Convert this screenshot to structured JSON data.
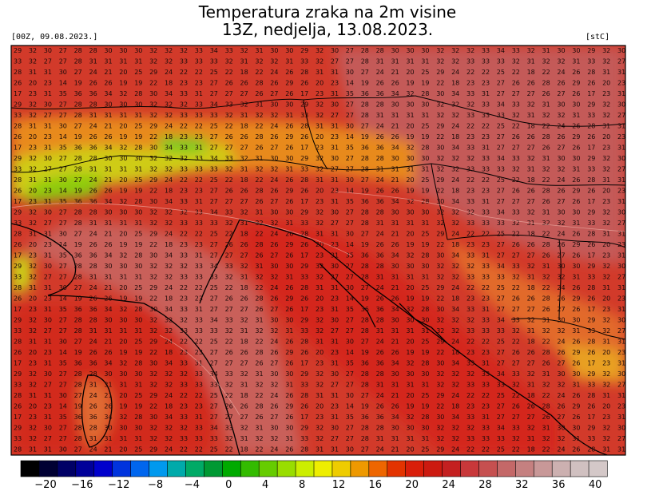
{
  "title_line1": "Temperatura zraka na 2m visine",
  "title_line2": "13Z, nedjelja, 13.08.2023.",
  "run_label": "[00Z, 09.08.2023.]",
  "unit_label": "[stC]",
  "legend": {
    "ticks": [
      "−20",
      "−16",
      "−12",
      "−8",
      "−4",
      "0",
      "4",
      "8",
      "12",
      "16",
      "20",
      "24",
      "28",
      "32",
      "36",
      "40"
    ],
    "colors": [
      "#000000",
      "#000033",
      "#000066",
      "#000099",
      "#0000cc",
      "#0033dd",
      "#0066ee",
      "#0099ee",
      "#00aaaa",
      "#00aa66",
      "#009933",
      "#00aa00",
      "#33bb00",
      "#66cc00",
      "#99dd00",
      "#ccee00",
      "#eeee00",
      "#eecc00",
      "#ee9900",
      "#ee6600",
      "#e33300",
      "#d91e0a",
      "#cc1a10",
      "#c42020",
      "#c8383a",
      "#c65050",
      "#c46868",
      "#c58080",
      "#c89898",
      "#ccb0b0",
      "#d0c0c0",
      "#d4c8c8"
    ]
  },
  "grid_values_sample": [
    [
      "29",
      "32",
      "30",
      "27",
      "28",
      "28",
      "30",
      "30",
      "30",
      "32",
      "32",
      "32",
      "33",
      "34",
      "33",
      "32",
      "31",
      "30",
      "30"
    ],
    [
      "33",
      "32",
      "27",
      "27",
      "28",
      "31",
      "31",
      "31",
      "31",
      "32",
      "32",
      "33",
      "33",
      "33",
      "32",
      "31",
      "32",
      "32",
      "31"
    ],
    [
      "28",
      "31",
      "31",
      "30",
      "27",
      "24",
      "21",
      "20",
      "25",
      "29",
      "24",
      "22",
      "22",
      "25",
      "22",
      "18",
      "22",
      "24",
      "26"
    ],
    [
      "26",
      "20",
      "23",
      "14",
      "19",
      "26",
      "26",
      "19",
      "19",
      "22",
      "18",
      "23",
      "23",
      "27",
      "26",
      "26",
      "28",
      "26",
      "29"
    ],
    [
      "17",
      "23",
      "31",
      "35",
      "36",
      "36",
      "34",
      "32",
      "28",
      "30",
      "34",
      "33",
      "31",
      "27",
      "27",
      "27",
      "26",
      "27",
      "26"
    ]
  ]
}
